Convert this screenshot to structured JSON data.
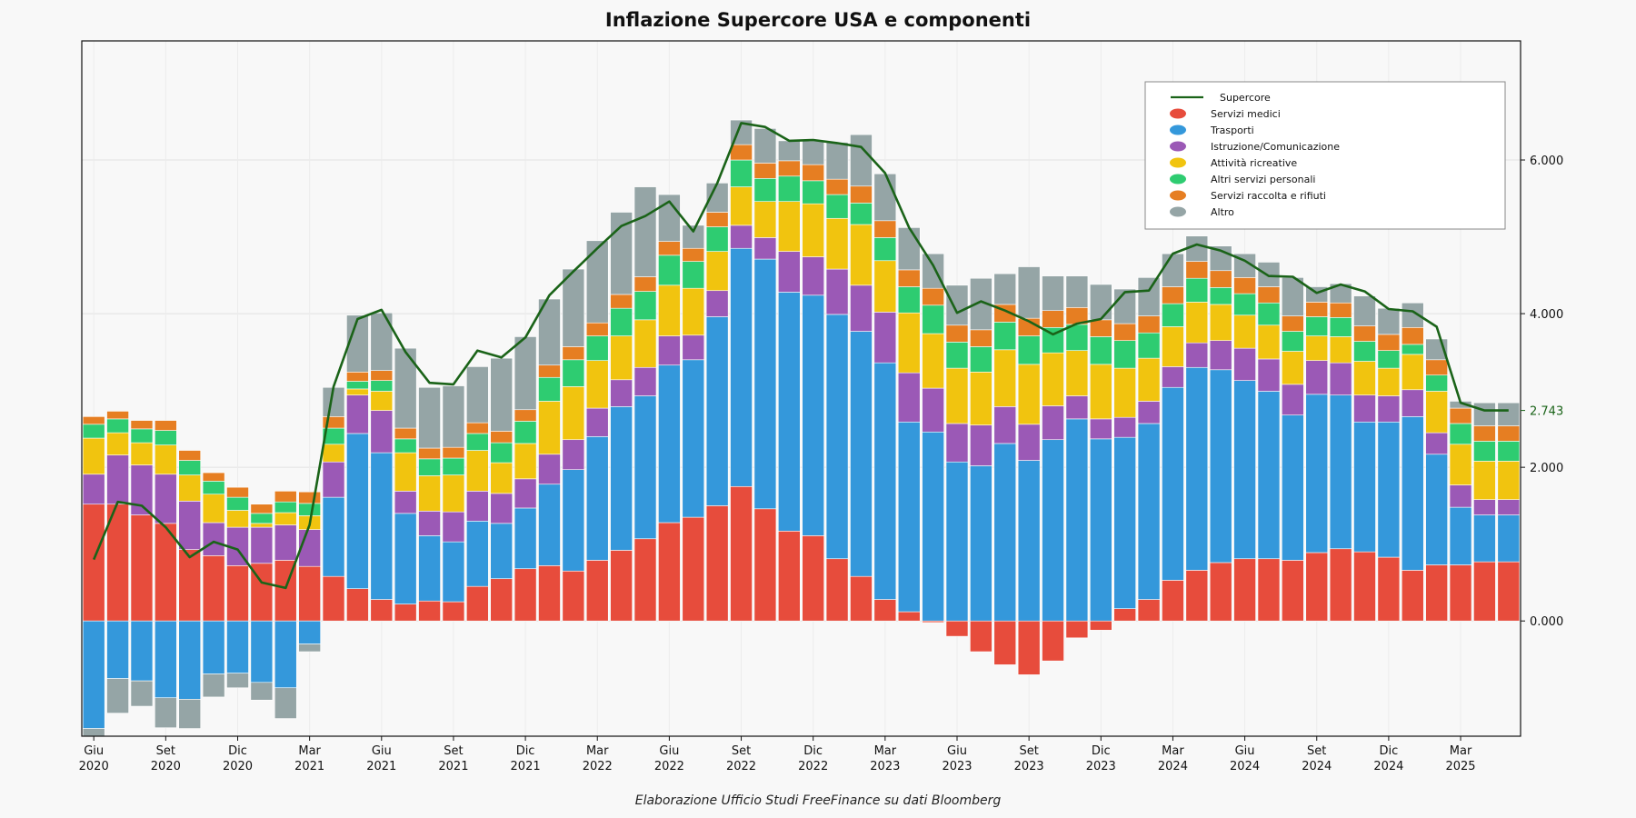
{
  "chart_data": {
    "type": "bar",
    "stacked": true,
    "title": "Inflazione Supercore USA e componenti",
    "source": "Elaborazione Ufficio Studi FreeFinance su dati Bloomberg",
    "xlabel": "",
    "ylabel": "",
    "ylim": [
      -1.5,
      7.55
    ],
    "y_axis_side": "right",
    "y_ticks": [
      "6.000",
      "4.000",
      "2.000",
      "0.000"
    ],
    "y_tick_values": [
      6,
      4,
      2,
      0
    ],
    "grid": true,
    "legend_position": "top-right",
    "last_value_label": "2.743",
    "x_tick_labels": [
      {
        "index": 0,
        "month": "Giu",
        "year": "2020"
      },
      {
        "index": 3,
        "month": "Set",
        "year": "2020"
      },
      {
        "index": 6,
        "month": "Dic",
        "year": "2020"
      },
      {
        "index": 9,
        "month": "Mar",
        "year": "2021"
      },
      {
        "index": 12,
        "month": "Giu",
        "year": "2021"
      },
      {
        "index": 15,
        "month": "Set",
        "year": "2021"
      },
      {
        "index": 18,
        "month": "Dic",
        "year": "2021"
      },
      {
        "index": 21,
        "month": "Mar",
        "year": "2022"
      },
      {
        "index": 24,
        "month": "Giu",
        "year": "2022"
      },
      {
        "index": 27,
        "month": "Set",
        "year": "2022"
      },
      {
        "index": 30,
        "month": "Dic",
        "year": "2022"
      },
      {
        "index": 33,
        "month": "Mar",
        "year": "2023"
      },
      {
        "index": 36,
        "month": "Giu",
        "year": "2023"
      },
      {
        "index": 39,
        "month": "Set",
        "year": "2023"
      },
      {
        "index": 42,
        "month": "Dic",
        "year": "2023"
      },
      {
        "index": 45,
        "month": "Mar",
        "year": "2024"
      },
      {
        "index": 48,
        "month": "Giu",
        "year": "2024"
      },
      {
        "index": 51,
        "month": "Set",
        "year": "2024"
      },
      {
        "index": 54,
        "month": "Dic",
        "year": "2024"
      },
      {
        "index": 57,
        "month": "Mar",
        "year": "2025"
      }
    ],
    "categories": [
      "2020-06",
      "2020-07",
      "2020-08",
      "2020-09",
      "2020-10",
      "2020-11",
      "2020-12",
      "2021-01",
      "2021-02",
      "2021-03",
      "2021-04",
      "2021-05",
      "2021-06",
      "2021-07",
      "2021-08",
      "2021-09",
      "2021-10",
      "2021-11",
      "2021-12",
      "2022-01",
      "2022-02",
      "2022-03",
      "2022-04",
      "2022-05",
      "2022-06",
      "2022-07",
      "2022-08",
      "2022-09",
      "2022-10",
      "2022-11",
      "2022-12",
      "2023-01",
      "2023-02",
      "2023-03",
      "2023-04",
      "2023-05",
      "2023-06",
      "2023-07",
      "2023-08",
      "2023-09",
      "2023-10",
      "2023-11",
      "2023-12",
      "2024-01",
      "2024-02",
      "2024-03",
      "2024-04",
      "2024-05",
      "2024-06",
      "2024-07",
      "2024-08",
      "2024-09",
      "2024-10",
      "2024-11",
      "2024-12",
      "2025-01",
      "2025-02",
      "2025-03",
      "2025-04",
      "2025-05"
    ],
    "line": {
      "name": "Supercore",
      "color": "#1a6318",
      "values": [
        0.8,
        1.55,
        1.5,
        1.22,
        0.83,
        1.03,
        0.93,
        0.5,
        0.43,
        1.25,
        3.05,
        3.93,
        4.05,
        3.5,
        3.1,
        3.08,
        3.52,
        3.43,
        3.69,
        4.24,
        4.55,
        4.85,
        5.14,
        5.27,
        5.46,
        5.07,
        5.7,
        6.48,
        6.43,
        6.25,
        6.26,
        6.22,
        6.17,
        5.83,
        5.12,
        4.63,
        4.01,
        4.16,
        4.04,
        3.9,
        3.73,
        3.87,
        3.93,
        4.28,
        4.3,
        4.78,
        4.9,
        4.82,
        4.69,
        4.49,
        4.48,
        4.27,
        4.38,
        4.29,
        4.06,
        4.03,
        3.83,
        2.84,
        2.74,
        2.74
      ]
    },
    "series": [
      {
        "name": "Servizi medici",
        "color": "#e74c3c",
        "values": [
          1.52,
          1.52,
          1.38,
          1.27,
          0.93,
          0.85,
          0.72,
          0.75,
          0.79,
          0.71,
          0.58,
          0.42,
          0.28,
          0.22,
          0.26,
          0.25,
          0.45,
          0.55,
          0.68,
          0.72,
          0.65,
          0.79,
          0.92,
          1.07,
          1.28,
          1.35,
          1.5,
          1.75,
          1.46,
          1.17,
          1.11,
          0.81,
          0.58,
          0.28,
          0.12,
          -0.02,
          -0.2,
          -0.4,
          -0.57,
          -0.7,
          -0.52,
          -0.22,
          -0.12,
          0.16,
          0.28,
          0.53,
          0.66,
          0.76,
          0.81,
          0.81,
          0.79,
          0.89,
          0.94,
          0.9,
          0.83,
          0.66,
          0.73,
          0.73,
          0.77,
          0.77
        ]
      },
      {
        "name": "Trasporti",
        "color": "#3498db",
        "values": [
          -1.4,
          -0.75,
          -0.78,
          -1.0,
          -1.02,
          -0.69,
          -0.68,
          -0.8,
          -0.87,
          -0.3,
          1.03,
          2.02,
          1.91,
          1.18,
          0.85,
          0.78,
          0.85,
          0.72,
          0.79,
          1.06,
          1.32,
          1.61,
          1.87,
          1.86,
          2.05,
          2.05,
          2.46,
          3.1,
          3.25,
          3.11,
          3.13,
          3.18,
          3.19,
          3.08,
          2.47,
          2.46,
          2.07,
          2.02,
          2.31,
          2.09,
          2.36,
          2.63,
          2.37,
          2.23,
          2.29,
          2.51,
          2.64,
          2.51,
          2.32,
          2.18,
          1.89,
          2.06,
          2.0,
          1.69,
          1.76,
          2.0,
          1.44,
          0.75,
          0.61,
          0.61
        ]
      },
      {
        "name": "Istruzione/Comunicazione",
        "color": "#9b59b6",
        "values": [
          0.39,
          0.64,
          0.65,
          0.64,
          0.63,
          0.43,
          0.5,
          0.47,
          0.46,
          0.48,
          0.46,
          0.5,
          0.55,
          0.29,
          0.32,
          0.39,
          0.39,
          0.39,
          0.38,
          0.39,
          0.39,
          0.37,
          0.35,
          0.37,
          0.38,
          0.32,
          0.34,
          0.3,
          0.28,
          0.53,
          0.5,
          0.59,
          0.6,
          0.66,
          0.64,
          0.57,
          0.5,
          0.53,
          0.48,
          0.47,
          0.44,
          0.3,
          0.26,
          0.26,
          0.29,
          0.27,
          0.32,
          0.38,
          0.42,
          0.42,
          0.4,
          0.44,
          0.42,
          0.35,
          0.34,
          0.35,
          0.28,
          0.29,
          0.2,
          0.2
        ]
      },
      {
        "name": "Attività ricreative",
        "color": "#f1c40f",
        "values": [
          0.47,
          0.29,
          0.29,
          0.38,
          0.34,
          0.37,
          0.22,
          0.05,
          0.16,
          0.18,
          0.23,
          0.08,
          0.25,
          0.5,
          0.46,
          0.48,
          0.53,
          0.4,
          0.46,
          0.69,
          0.69,
          0.62,
          0.57,
          0.62,
          0.66,
          0.61,
          0.51,
          0.5,
          0.47,
          0.65,
          0.69,
          0.66,
          0.79,
          0.67,
          0.78,
          0.71,
          0.72,
          0.69,
          0.74,
          0.78,
          0.69,
          0.59,
          0.71,
          0.64,
          0.56,
          0.52,
          0.53,
          0.47,
          0.43,
          0.44,
          0.43,
          0.32,
          0.34,
          0.44,
          0.36,
          0.46,
          0.54,
          0.53,
          0.5,
          0.5
        ]
      },
      {
        "name": "Altri servizi personali",
        "color": "#2ecc71",
        "values": [
          0.18,
          0.18,
          0.18,
          0.19,
          0.19,
          0.17,
          0.17,
          0.13,
          0.14,
          0.16,
          0.21,
          0.1,
          0.14,
          0.18,
          0.22,
          0.22,
          0.22,
          0.26,
          0.29,
          0.31,
          0.35,
          0.32,
          0.36,
          0.37,
          0.39,
          0.35,
          0.32,
          0.35,
          0.3,
          0.33,
          0.3,
          0.31,
          0.28,
          0.3,
          0.34,
          0.37,
          0.34,
          0.33,
          0.36,
          0.37,
          0.33,
          0.34,
          0.36,
          0.36,
          0.33,
          0.3,
          0.31,
          0.22,
          0.28,
          0.29,
          0.26,
          0.25,
          0.25,
          0.26,
          0.23,
          0.13,
          0.21,
          0.27,
          0.26,
          0.26
        ]
      },
      {
        "name": "Servizi raccolta e rifiuti",
        "color": "#e67e22",
        "values": [
          0.1,
          0.1,
          0.11,
          0.13,
          0.13,
          0.11,
          0.13,
          0.12,
          0.14,
          0.15,
          0.15,
          0.12,
          0.13,
          0.14,
          0.14,
          0.14,
          0.14,
          0.15,
          0.15,
          0.16,
          0.17,
          0.17,
          0.18,
          0.19,
          0.18,
          0.17,
          0.19,
          0.2,
          0.2,
          0.2,
          0.21,
          0.2,
          0.22,
          0.22,
          0.22,
          0.22,
          0.22,
          0.22,
          0.23,
          0.23,
          0.22,
          0.22,
          0.22,
          0.22,
          0.22,
          0.22,
          0.22,
          0.22,
          0.21,
          0.21,
          0.2,
          0.19,
          0.19,
          0.2,
          0.21,
          0.22,
          0.2,
          0.2,
          0.2,
          0.2
        ]
      },
      {
        "name": "Altro",
        "color": "#95a5a6",
        "values": [
          -0.1,
          -0.45,
          -0.33,
          -0.39,
          -0.38,
          -0.3,
          -0.19,
          -0.23,
          -0.4,
          -0.1,
          0.38,
          0.74,
          0.75,
          1.04,
          0.79,
          0.8,
          0.73,
          0.95,
          0.95,
          0.86,
          1.01,
          1.07,
          1.07,
          1.17,
          0.61,
          0.3,
          0.38,
          0.32,
          0.45,
          0.26,
          0.31,
          0.48,
          0.67,
          0.61,
          0.55,
          0.45,
          0.52,
          0.67,
          0.4,
          0.67,
          0.45,
          0.41,
          0.46,
          0.45,
          0.5,
          0.43,
          0.33,
          0.32,
          0.31,
          0.32,
          0.5,
          0.2,
          0.25,
          0.39,
          0.34,
          0.32,
          0.27,
          0.09,
          0.3,
          0.3
        ]
      }
    ]
  }
}
